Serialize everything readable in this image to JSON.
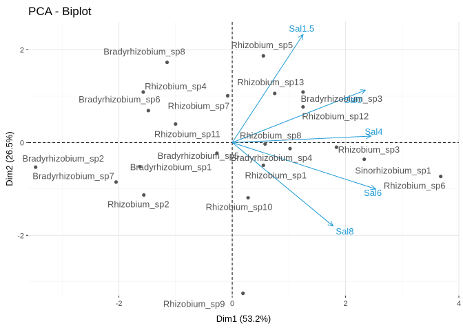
{
  "chart_data": {
    "type": "scatter",
    "title": "PCA - Biplot",
    "xlabel": "Dim1 (53.2%)",
    "ylabel": "Dim2 (26.5%)",
    "xlim": [
      -3.6,
      4.0
    ],
    "ylim": [
      -3.3,
      2.6
    ],
    "xticks": [
      -2,
      0,
      2,
      4
    ],
    "yticks": [
      -2,
      0,
      2
    ],
    "grid": true,
    "reference_lines": {
      "x": 0,
      "y": 0
    },
    "colors": {
      "individuals": "#555555",
      "points": "#555555",
      "variables": "#1E9BD7"
    },
    "individuals": [
      {
        "name": "Rhizobium_sp5",
        "x": 0.55,
        "y": 1.87
      },
      {
        "name": "Bradyrhizobium_sp8",
        "x": -1.15,
        "y": 1.73
      },
      {
        "name": "Rhizobium_sp4",
        "x": -1.57,
        "y": 1.09
      },
      {
        "name": "Rhizobium_sp13",
        "x": 1.25,
        "y": 1.09
      },
      {
        "name": "Rhizobium_sp7",
        "x": -0.08,
        "y": 1.01
      },
      {
        "name": "Bradyrhizobium_sp3",
        "x": 0.75,
        "y": 1.06
      },
      {
        "name": "Bradyrhizobium_sp6",
        "x": -1.48,
        "y": 0.69
      },
      {
        "name": "Rhizobium_sp12",
        "x": 1.25,
        "y": 0.77
      },
      {
        "name": "Rhizobium_sp11",
        "x": -1.0,
        "y": 0.4
      },
      {
        "name": "Rhizobium_sp8",
        "x": 0.58,
        "y": -0.03
      },
      {
        "name": "Rhizobium_sp3",
        "x": 1.84,
        "y": -0.1
      },
      {
        "name": "Bradyrhizobium_sp5",
        "x": -0.27,
        "y": -0.23
      },
      {
        "name": "Bradyrhizobium_sp4",
        "x": 1.02,
        "y": -0.13
      },
      {
        "name": "Bradyrhizobium_sp1",
        "x": -1.63,
        "y": -0.52
      },
      {
        "name": "Bradyrhizobium_sp2",
        "x": -3.47,
        "y": -0.53
      },
      {
        "name": "Sinorhizobium_sp1",
        "x": 2.33,
        "y": -0.36
      },
      {
        "name": "Rhizobium_sp1",
        "x": 0.55,
        "y": -0.49
      },
      {
        "name": "Bradyrhizobium_sp7",
        "x": -2.05,
        "y": -0.85
      },
      {
        "name": "Rhizobium_sp6",
        "x": 3.68,
        "y": -0.73
      },
      {
        "name": "Rhizobium_sp2",
        "x": -1.56,
        "y": -1.13
      },
      {
        "name": "Rhizobium_sp10",
        "x": 0.28,
        "y": -1.19
      },
      {
        "name": "Rhizobium_sp9",
        "x": 0.19,
        "y": -3.25
      }
    ],
    "variables": [
      {
        "name": "Sal1.5",
        "x": 1.25,
        "y": 2.33
      },
      {
        "name": "Sal0",
        "x": 2.35,
        "y": 1.13
      },
      {
        "name": "Sal4",
        "x": 2.45,
        "y": 0.14
      },
      {
        "name": "Sal6",
        "x": 2.53,
        "y": -1.0
      },
      {
        "name": "Sal8",
        "x": 1.78,
        "y": -1.8
      }
    ]
  }
}
